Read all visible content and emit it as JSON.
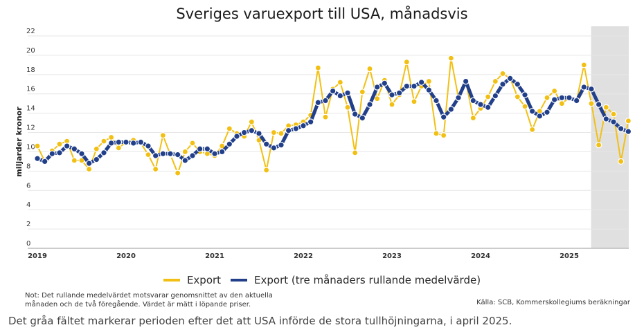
{
  "chart_data": {
    "type": "line",
    "title": "Sveriges varuexport till USA, månadsvis",
    "xlabel": "",
    "ylabel": "miljarder kronor",
    "ylim": [
      0,
      22
    ],
    "yticks": [
      0,
      2,
      4,
      6,
      8,
      10,
      12,
      14,
      16,
      18,
      20,
      22
    ],
    "xtick_labels": [
      "2019",
      "2020",
      "2021",
      "2022",
      "2023",
      "2024",
      "2025"
    ],
    "x_start": "2019-01",
    "x_end": "2025-09",
    "grid": true,
    "legend_position": "bottom",
    "shaded_region": {
      "from": "2025-04",
      "to": "2025-09",
      "color": "#e0e0e0"
    },
    "series": [
      {
        "name": "Export",
        "color": "#f2c014",
        "values": [
          10.6,
          9.0,
          10.1,
          10.8,
          11.1,
          9.1,
          9.1,
          8.2,
          10.3,
          11.1,
          11.5,
          10.4,
          11.0,
          11.2,
          10.9,
          9.7,
          8.2,
          11.7,
          9.7,
          7.8,
          10.0,
          10.9,
          10.0,
          9.8,
          9.6,
          10.6,
          12.4,
          11.9,
          11.6,
          13.1,
          11.2,
          8.1,
          12.0,
          11.9,
          12.7,
          12.8,
          13.1,
          13.8,
          18.7,
          13.6,
          16.5,
          17.2,
          14.6,
          9.9,
          16.2,
          18.6,
          15.5,
          17.4,
          14.9,
          15.9,
          19.3,
          15.2,
          16.8,
          17.3,
          11.9,
          11.7,
          19.7,
          15.6,
          17.3,
          13.5,
          14.5,
          15.7,
          17.3,
          18.1,
          17.6,
          15.7,
          14.7,
          12.3,
          14.2,
          15.6,
          16.3,
          15.0,
          15.6,
          15.3,
          19.0,
          15.0,
          10.7,
          14.6,
          13.9,
          9.0,
          13.2
        ]
      },
      {
        "name": "Export (tre månaders rullande medelvärde)",
        "color": "#22408a",
        "values": [
          9.3,
          9.0,
          9.8,
          9.9,
          10.6,
          10.3,
          9.8,
          8.8,
          9.2,
          9.9,
          10.9,
          11.0,
          11.0,
          10.9,
          11.0,
          10.6,
          9.6,
          9.8,
          9.8,
          9.7,
          9.1,
          9.6,
          10.3,
          10.3,
          9.8,
          10.0,
          10.8,
          11.6,
          12.0,
          12.2,
          11.9,
          10.8,
          10.4,
          10.7,
          12.2,
          12.4,
          12.7,
          13.1,
          15.1,
          15.3,
          16.3,
          15.8,
          16.1,
          13.9,
          13.5,
          14.9,
          16.7,
          17.1,
          15.9,
          16.1,
          16.8,
          16.8,
          17.2,
          16.4,
          15.3,
          13.6,
          14.4,
          15.6,
          17.3,
          15.3,
          14.9,
          14.6,
          15.8,
          17.0,
          17.6,
          17.0,
          15.9,
          14.2,
          13.7,
          14.1,
          15.4,
          15.6,
          15.6,
          15.3,
          16.7,
          16.5,
          14.9,
          13.4,
          13.1,
          12.4,
          12.1
        ]
      }
    ]
  },
  "legend": {
    "items": [
      {
        "label": "Export",
        "color": "#f2c014"
      },
      {
        "label": "Export (tre månaders rullande medelvärde)",
        "color": "#22408a"
      }
    ]
  },
  "note": {
    "line1": "Not: Det rullande medelvärdet motsvarar genomsnittet av den aktuella",
    "line2": "månaden och de två föregående. Värdet är mätt i löpande priser."
  },
  "source": "Källa: SCB, Kommerskollegiums beräkningar",
  "caption": "Det gråa fältet markerar perioden efter det att USA införde de stora tullhöjningarna, i april 2025."
}
